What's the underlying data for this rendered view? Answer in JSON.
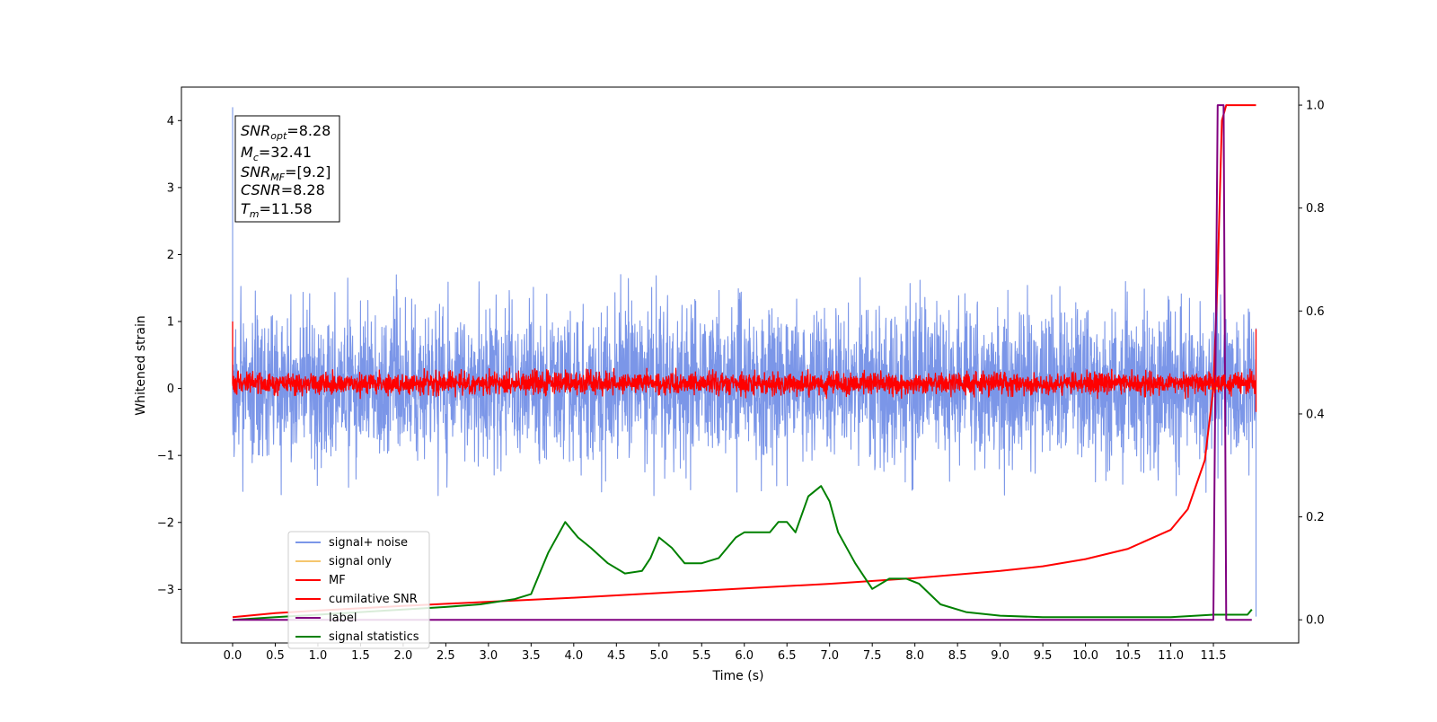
{
  "chart_data": {
    "type": "line",
    "xlabel": "Time (s)",
    "ylabel": "Whitened strain",
    "xlim": [
      -0.6,
      12.5
    ],
    "ylim": [
      -3.8,
      4.5
    ],
    "y2lim": [
      -0.045,
      1.035
    ],
    "grid": false,
    "legend_position": "lower-left",
    "x_ticks": [
      "0.0",
      "0.5",
      "1.0",
      "1.5",
      "2.0",
      "2.5",
      "3.0",
      "3.5",
      "4.0",
      "4.5",
      "5.0",
      "5.5",
      "6.0",
      "6.5",
      "7.0",
      "7.5",
      "8.0",
      "8.5",
      "9.0",
      "9.5",
      "10.0",
      "10.5",
      "11.0",
      "11.5"
    ],
    "y_ticks": [
      "4",
      "3",
      "2",
      "1",
      "0",
      "−1",
      "−2",
      "−3"
    ],
    "y2_ticks": [
      "1.0",
      "0.8",
      "0.6",
      "0.4",
      "0.2",
      "0.0"
    ],
    "info_box": {
      "snr_opt": {
        "var": "SNR",
        "sub": "opt",
        "value": "=8.28"
      },
      "mc": {
        "var": "M",
        "sub": "c",
        "value": "=32.41"
      },
      "snr_mf": {
        "var": "SNR",
        "sub": "MF",
        "value": "=[9.2]"
      },
      "csnr": {
        "var": "CSNR",
        "value": "=8.28"
      },
      "tm": {
        "var": "T",
        "sub": "m",
        "value": "=11.58"
      }
    },
    "series": [
      {
        "name": "signal+ noise",
        "color": "#7b96e8",
        "axis": "left",
        "style": "noise",
        "x_range": [
          0.0,
          12.0
        ],
        "envelope_upper": 1.7,
        "envelope_lower": -1.6,
        "x_spikes": [
          [
            0.0,
            4.2
          ],
          [
            0.0,
            2.65
          ],
          [
            12.0,
            -3.4
          ],
          [
            12.0,
            0.9
          ]
        ]
      },
      {
        "name": "signal only",
        "color": "#f5c66e",
        "axis": "left",
        "style": "line",
        "x": [
          11.45,
          11.6
        ],
        "y": [
          0.0,
          0.0
        ]
      },
      {
        "name": "MF",
        "color": "#ff0000",
        "axis": "left",
        "style": "noise",
        "x_range": [
          0.0,
          12.0
        ],
        "envelope_upper": 0.3,
        "envelope_lower": -0.15,
        "x_spikes": [
          [
            0.0,
            1.0
          ],
          [
            0.42,
            0.85
          ],
          [
            12.0,
            0.88
          ],
          [
            12.0,
            -0.35
          ]
        ]
      },
      {
        "name": "cumilative SNR",
        "color": "#ff0000",
        "axis": "right",
        "style": "line",
        "x": [
          0.0,
          0.5,
          1.0,
          2.0,
          3.0,
          4.0,
          5.0,
          6.0,
          7.0,
          8.0,
          9.0,
          9.5,
          10.0,
          10.5,
          11.0,
          11.2,
          11.4,
          11.5,
          11.55,
          11.6,
          11.65,
          12.0
        ],
        "y": [
          0.005,
          0.013,
          0.018,
          0.027,
          0.035,
          0.043,
          0.052,
          0.061,
          0.07,
          0.081,
          0.095,
          0.104,
          0.118,
          0.138,
          0.175,
          0.215,
          0.31,
          0.45,
          0.67,
          0.97,
          1.0,
          1.0
        ]
      },
      {
        "name": "label",
        "color": "#800080",
        "axis": "right",
        "style": "line",
        "x": [
          0.0,
          11.45,
          11.5,
          11.55,
          11.62,
          11.65,
          11.95
        ],
        "y": [
          0.0,
          0.0,
          0.0,
          1.0,
          1.0,
          0.0,
          0.0
        ]
      },
      {
        "name": "signal statistics",
        "color": "#008000",
        "axis": "right",
        "style": "line",
        "x": [
          0.0,
          0.5,
          1.0,
          1.5,
          2.0,
          2.5,
          2.9,
          3.3,
          3.5,
          3.7,
          3.9,
          4.05,
          4.2,
          4.4,
          4.6,
          4.8,
          4.9,
          5.0,
          5.15,
          5.3,
          5.5,
          5.7,
          5.9,
          6.0,
          6.15,
          6.3,
          6.4,
          6.5,
          6.6,
          6.75,
          6.9,
          7.0,
          7.1,
          7.3,
          7.5,
          7.7,
          7.9,
          8.05,
          8.3,
          8.6,
          9.0,
          9.5,
          10.0,
          10.5,
          11.0,
          11.5,
          11.9,
          11.95
        ],
        "y": [
          0.0,
          0.005,
          0.01,
          0.015,
          0.02,
          0.025,
          0.03,
          0.04,
          0.05,
          0.13,
          0.19,
          0.16,
          0.14,
          0.11,
          0.09,
          0.095,
          0.12,
          0.16,
          0.14,
          0.11,
          0.11,
          0.12,
          0.16,
          0.17,
          0.17,
          0.17,
          0.19,
          0.19,
          0.17,
          0.24,
          0.26,
          0.23,
          0.17,
          0.11,
          0.06,
          0.08,
          0.08,
          0.07,
          0.03,
          0.015,
          0.008,
          0.005,
          0.005,
          0.005,
          0.005,
          0.01,
          0.01,
          0.02
        ]
      }
    ]
  }
}
